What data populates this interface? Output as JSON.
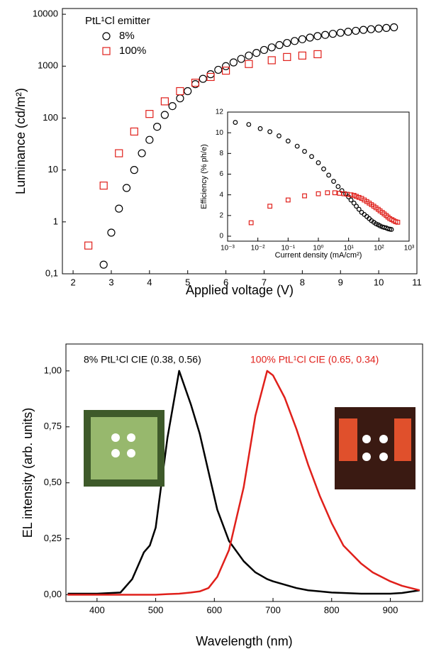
{
  "chart_data": [
    {
      "type": "scatter",
      "xlabel": "Applied voltage (V)",
      "ylabel": "Luminance (cd/m²)",
      "xlim": [
        1.72,
        11
      ],
      "ylim": [
        0.1,
        12900
      ],
      "ylog": true,
      "xticks": [
        2,
        3,
        4,
        5,
        6,
        7,
        8,
        9,
        10,
        11
      ],
      "yticks": [
        {
          "value": 0.1,
          "label": "0,1"
        },
        1,
        10,
        100,
        1000,
        10000
      ],
      "legend_title": "PtL¹Cl emitter",
      "legend": "upper left",
      "series": [
        {
          "name": "8%",
          "color": "#000000",
          "marker": "circle",
          "x": [
            2.8,
            3.0,
            3.2,
            3.4,
            3.6,
            3.8,
            4.0,
            4.2,
            4.4,
            4.6,
            4.8,
            5.0,
            5.2,
            5.4,
            5.6,
            5.8,
            6.0,
            6.2,
            6.4,
            6.6,
            6.8,
            7.0,
            7.2,
            7.4,
            7.6,
            7.8,
            8.0,
            8.2,
            8.4,
            8.6,
            8.8,
            9.0,
            9.2,
            9.4,
            9.6,
            9.8,
            10.0,
            10.2,
            10.4
          ],
          "values": [
            0.15,
            0.62,
            1.8,
            4.5,
            10,
            21,
            38,
            68,
            115,
            170,
            240,
            330,
            450,
            570,
            700,
            850,
            1000,
            1180,
            1380,
            1600,
            1800,
            2050,
            2300,
            2550,
            2800,
            3050,
            3300,
            3550,
            3800,
            4000,
            4200,
            4400,
            4600,
            4800,
            5000,
            5150,
            5300,
            5450,
            5600
          ]
        },
        {
          "name": "100%",
          "color": "#e0201b",
          "marker": "square",
          "x": [
            2.4,
            2.8,
            3.2,
            3.6,
            4.0,
            4.4,
            4.8,
            5.2,
            5.6,
            6.0,
            6.6,
            7.2,
            7.6,
            8.0,
            8.4
          ],
          "values": [
            0.35,
            5,
            21,
            55,
            120,
            210,
            330,
            480,
            620,
            820,
            1100,
            1300,
            1500,
            1600,
            1700
          ]
        }
      ]
    },
    {
      "type": "scatter",
      "xlabel": "Current density (mA/cm²)",
      "ylabel": "Efficiency (% ph/e)",
      "xlim": [
        0.001,
        1000
      ],
      "ylim": [
        0,
        12
      ],
      "xlog": true,
      "xticks": [
        {
          "value": 0.001,
          "label": "10⁻³"
        },
        {
          "value": 0.01,
          "label": "10⁻²"
        },
        {
          "value": 0.1,
          "label": "10⁻¹"
        },
        {
          "value": 1,
          "label": "10⁰"
        },
        {
          "value": 10,
          "label": "10¹"
        },
        {
          "value": 100,
          "label": "10²"
        },
        {
          "value": 1000,
          "label": "10³"
        }
      ],
      "yticks": [
        0,
        2,
        4,
        6,
        8,
        10,
        12
      ],
      "series": [
        {
          "color": "#000000",
          "marker": "circle",
          "x": [
            0.0018,
            0.005,
            0.012,
            0.025,
            0.05,
            0.1,
            0.2,
            0.35,
            0.6,
            1,
            1.5,
            2.2,
            3.2,
            4.5,
            6,
            8,
            10,
            12,
            15,
            18,
            22,
            27,
            33,
            40,
            48,
            57,
            68,
            80,
            95,
            110,
            130,
            150,
            175,
            200,
            230,
            260
          ],
          "values": [
            11.0,
            10.8,
            10.4,
            10.1,
            9.7,
            9.2,
            8.7,
            8.2,
            7.7,
            7.1,
            6.5,
            5.9,
            5.3,
            4.8,
            4.4,
            4.1,
            3.8,
            3.5,
            3.2,
            2.9,
            2.6,
            2.3,
            2.1,
            1.9,
            1.7,
            1.5,
            1.35,
            1.2,
            1.1,
            1.0,
            0.9,
            0.85,
            0.8,
            0.72,
            0.68,
            0.65
          ]
        },
        {
          "color": "#e0201b",
          "marker": "square",
          "x": [
            0.006,
            0.025,
            0.1,
            0.35,
            1,
            2,
            3.5,
            5,
            7,
            9,
            12,
            15,
            18,
            22,
            27,
            33,
            40,
            48,
            57,
            68,
            80,
            95,
            110,
            130,
            150,
            175,
            200,
            230,
            270,
            310,
            360,
            420
          ],
          "values": [
            1.3,
            2.9,
            3.5,
            3.9,
            4.1,
            4.2,
            4.2,
            4.15,
            4.1,
            4.05,
            4.0,
            3.95,
            3.85,
            3.75,
            3.65,
            3.5,
            3.35,
            3.2,
            3.05,
            2.9,
            2.75,
            2.6,
            2.45,
            2.3,
            2.15,
            2.0,
            1.85,
            1.7,
            1.6,
            1.5,
            1.4,
            1.35
          ]
        }
      ]
    },
    {
      "type": "line",
      "xlabel": "Wavelength (nm)",
      "ylabel": "EL intensity (arb. units)",
      "xlim": [
        347,
        955
      ],
      "ylim": [
        -0.03,
        1.12
      ],
      "xticks": [
        400,
        500,
        600,
        700,
        800,
        900
      ],
      "yticks": [
        {
          "value": 0,
          "label": "0,00"
        },
        {
          "value": 0.25,
          "label": "0,25"
        },
        {
          "value": 0.5,
          "label": "0,50"
        },
        {
          "value": 0.75,
          "label": "0,75"
        },
        {
          "value": 1,
          "label": "1,00"
        }
      ],
      "x": [
        350,
        400,
        440,
        460,
        480,
        490,
        500,
        520,
        540,
        560,
        575,
        590,
        605,
        625,
        650,
        670,
        690,
        700,
        720,
        740,
        760,
        780,
        800,
        820,
        850,
        870,
        900,
        920,
        950
      ],
      "series": [
        {
          "color": "#000000",
          "values": [
            0.005,
            0.005,
            0.01,
            0.07,
            0.19,
            0.22,
            0.3,
            0.7,
            1.0,
            0.85,
            0.72,
            0.55,
            0.38,
            0.24,
            0.15,
            0.1,
            0.07,
            0.06,
            0.045,
            0.03,
            0.02,
            0.015,
            0.01,
            0.008,
            0.005,
            0.005,
            0.005,
            0.008,
            0.02
          ]
        },
        {
          "color": "#e0201b",
          "values": [
            0,
            0,
            0,
            0,
            0,
            0,
            0,
            0.003,
            0.005,
            0.01,
            0.015,
            0.03,
            0.08,
            0.2,
            0.48,
            0.8,
            1.0,
            0.98,
            0.88,
            0.74,
            0.58,
            0.44,
            0.32,
            0.22,
            0.14,
            0.1,
            0.06,
            0.04,
            0.02
          ]
        }
      ],
      "annotations": [
        {
          "text": "8% PtL¹Cl CIE (0.38, 0.56)",
          "color": "#000000"
        },
        {
          "text": "100% PtL¹Cl CIE (0.65, 0.34)",
          "color": "#e0201b"
        }
      ]
    }
  ]
}
